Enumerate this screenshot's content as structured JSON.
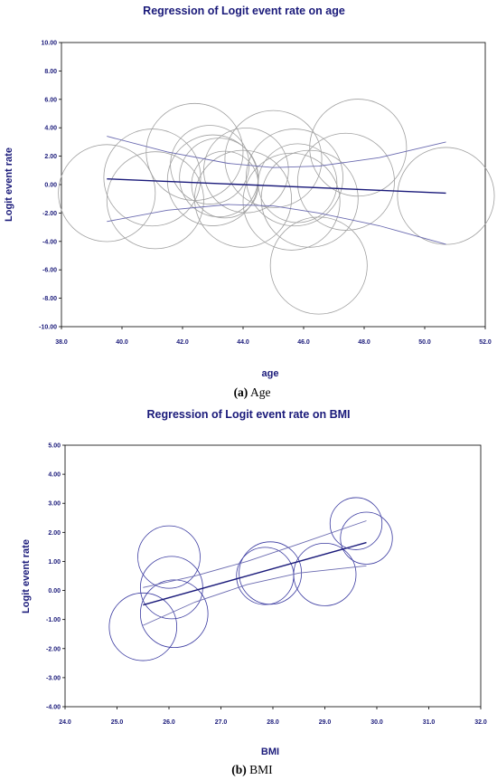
{
  "chart_data": [
    {
      "type": "scatter",
      "title": "Regression of Logit event rate on age",
      "xlabel": "age",
      "ylabel": "Logit event rate",
      "caption_letter": "(a)",
      "caption_text": " Age",
      "xlim": [
        38.0,
        52.0
      ],
      "ylim": [
        -10.0,
        10.0
      ],
      "xticks": [
        "38.0",
        "40.0",
        "42.0",
        "44.0",
        "46.0",
        "48.0",
        "50.0",
        "52.0"
      ],
      "yticks": [
        "10.00",
        "8.00",
        "6.00",
        "4.00",
        "2.00",
        "0.00",
        "-2.00",
        "-4.00",
        "-6.00",
        "-8.00",
        "-10.00"
      ],
      "grid": false,
      "colors": {
        "text": "#1a1a7a",
        "line": "#1a1a7a",
        "band": "#6a6ab0",
        "bubble": "#a0a0a0"
      },
      "points": [
        {
          "x": 39.5,
          "y": -0.6,
          "r": 1.6
        },
        {
          "x": 41.0,
          "y": 0.5,
          "r": 1.6
        },
        {
          "x": 41.1,
          "y": -1.1,
          "r": 1.6
        },
        {
          "x": 42.4,
          "y": 2.3,
          "r": 1.6
        },
        {
          "x": 42.9,
          "y": 1.4,
          "r": 1.3
        },
        {
          "x": 43.0,
          "y": 0.3,
          "r": 1.5
        },
        {
          "x": 43.2,
          "y": 0.5,
          "r": 1.3
        },
        {
          "x": 43.4,
          "y": 0.0,
          "r": 1.1
        },
        {
          "x": 44.0,
          "y": -1.0,
          "r": 1.6
        },
        {
          "x": 44.1,
          "y": 1.0,
          "r": 1.4
        },
        {
          "x": 45.0,
          "y": 1.8,
          "r": 1.6
        },
        {
          "x": 45.6,
          "y": -1.2,
          "r": 1.6
        },
        {
          "x": 45.7,
          "y": 0.5,
          "r": 1.6
        },
        {
          "x": 45.8,
          "y": 0.1,
          "r": 1.3
        },
        {
          "x": 46.2,
          "y": -1.0,
          "r": 1.6
        },
        {
          "x": 46.5,
          "y": -5.7,
          "r": 1.6
        },
        {
          "x": 47.4,
          "y": 0.2,
          "r": 1.6
        },
        {
          "x": 47.8,
          "y": 2.6,
          "r": 1.6
        },
        {
          "x": 50.7,
          "y": -0.8,
          "r": 1.6
        }
      ],
      "regression": {
        "x": [
          39.5,
          50.7
        ],
        "y": [
          0.4,
          -0.6
        ]
      },
      "ci_upper": {
        "x": [
          39.5,
          41.5,
          43.5,
          45.0,
          46.5,
          48.5,
          50.7
        ],
        "y": [
          3.4,
          2.3,
          1.5,
          1.2,
          1.3,
          1.9,
          3.0
        ]
      },
      "ci_lower": {
        "x": [
          39.5,
          41.5,
          43.5,
          45.0,
          46.5,
          48.5,
          50.7
        ],
        "y": [
          -2.6,
          -1.8,
          -1.4,
          -1.5,
          -2.0,
          -2.9,
          -4.2
        ]
      }
    },
    {
      "type": "scatter",
      "title": "Regression of Logit event rate on BMI",
      "xlabel": "BMI",
      "ylabel": "Logit event rate",
      "caption_letter": "(b)",
      "caption_text": " BMI",
      "xlim": [
        24.0,
        32.0
      ],
      "ylim": [
        -4.0,
        5.0
      ],
      "xticks": [
        "24.0",
        "25.0",
        "26.0",
        "27.0",
        "28.0",
        "29.0",
        "30.0",
        "31.0",
        "32.0"
      ],
      "yticks": [
        "5.00",
        "4.00",
        "3.00",
        "2.00",
        "1.00",
        "0.00",
        "-1.00",
        "-2.00",
        "-3.00",
        "-4.00"
      ],
      "grid": false,
      "colors": {
        "text": "#1a1a7a",
        "line": "#1a1a7a",
        "band": "#6a6ab0",
        "bubble": "#3a3aa0"
      },
      "points": [
        {
          "x": 25.5,
          "y": -1.25,
          "r": 0.65
        },
        {
          "x": 26.0,
          "y": 1.15,
          "r": 0.6
        },
        {
          "x": 26.05,
          "y": 0.1,
          "r": 0.6
        },
        {
          "x": 26.1,
          "y": -0.8,
          "r": 0.65
        },
        {
          "x": 27.85,
          "y": 0.5,
          "r": 0.55
        },
        {
          "x": 27.95,
          "y": 0.6,
          "r": 0.6
        },
        {
          "x": 29.0,
          "y": 0.55,
          "r": 0.6
        },
        {
          "x": 29.6,
          "y": 2.3,
          "r": 0.5
        },
        {
          "x": 29.8,
          "y": 1.8,
          "r": 0.5
        }
      ],
      "regression": {
        "x": [
          25.5,
          29.8
        ],
        "y": [
          -0.5,
          1.65
        ]
      },
      "ci_upper": {
        "x": [
          25.5,
          26.5,
          27.5,
          28.5,
          29.8
        ],
        "y": [
          0.1,
          0.5,
          1.0,
          1.6,
          2.4
        ]
      },
      "ci_lower": {
        "x": [
          25.5,
          26.5,
          27.5,
          28.5,
          29.8
        ],
        "y": [
          -1.2,
          -0.4,
          0.2,
          0.6,
          0.85
        ]
      }
    }
  ]
}
